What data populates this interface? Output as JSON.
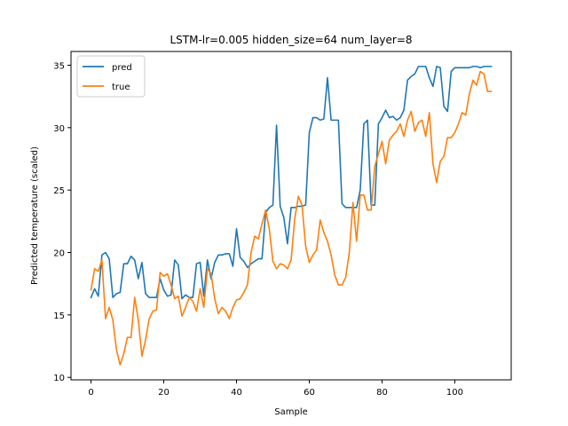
{
  "chart_data": {
    "type": "line",
    "title": "LSTM-lr=0.005 hidden_size=64 num_layer=8",
    "xlabel": "Sample",
    "ylabel": "Predicted temperature (scaled)",
    "xlim": [
      -5.5,
      115.5
    ],
    "ylim": [
      9.8,
      36.1
    ],
    "xticks": [
      0,
      20,
      40,
      60,
      80,
      100
    ],
    "yticks": [
      10,
      15,
      20,
      25,
      30,
      35
    ],
    "grid": false,
    "legend_position": "top-left",
    "series": [
      {
        "name": "pred",
        "color": "#1f77b4",
        "values": [
          16.4,
          17.1,
          16.5,
          19.8,
          20.0,
          19.5,
          16.4,
          16.7,
          16.8,
          19.1,
          19.1,
          19.7,
          19.4,
          17.9,
          19.2,
          16.7,
          16.4,
          16.4,
          16.4,
          17.9,
          17.0,
          16.5,
          16.6,
          19.4,
          19.0,
          16.3,
          16.6,
          16.4,
          16.4,
          19.1,
          19.2,
          16.5,
          19.4,
          17.9,
          19.2,
          19.8,
          19.8,
          19.9,
          19.9,
          18.9,
          21.9,
          19.6,
          19.3,
          18.8,
          19.1,
          19.3,
          19.5,
          19.5,
          23.2,
          23.6,
          23.8,
          30.2,
          23.7,
          22.8,
          20.7,
          23.6,
          23.6,
          23.7,
          23.7,
          23.8,
          29.6,
          30.8,
          30.8,
          30.6,
          30.7,
          34.0,
          30.6,
          30.6,
          30.6,
          23.9,
          23.6,
          23.6,
          23.6,
          23.6,
          25.0,
          30.3,
          30.6,
          23.8,
          23.8,
          30.3,
          30.8,
          31.4,
          30.8,
          30.9,
          30.6,
          30.8,
          31.4,
          33.8,
          34.1,
          34.3,
          34.9,
          34.9,
          34.9,
          34.0,
          33.3,
          34.9,
          34.8,
          31.7,
          31.3,
          34.5,
          34.8,
          34.8,
          34.8,
          34.8,
          34.8,
          34.9,
          34.9,
          34.8,
          34.9,
          34.9,
          34.9
        ]
      },
      {
        "name": "true",
        "color": "#ff7f0e",
        "values": [
          17.0,
          18.7,
          18.5,
          19.4,
          14.7,
          15.6,
          14.6,
          12.2,
          11.0,
          11.9,
          13.2,
          13.2,
          16.4,
          14.6,
          11.7,
          13.0,
          14.7,
          15.3,
          15.4,
          18.4,
          18.1,
          18.3,
          17.4,
          16.3,
          16.5,
          14.9,
          15.6,
          16.4,
          16.1,
          15.3,
          17.1,
          15.6,
          18.7,
          18.3,
          16.3,
          15.1,
          15.6,
          15.3,
          14.7,
          15.6,
          16.2,
          16.3,
          16.8,
          17.4,
          20.0,
          21.3,
          21.1,
          22.3,
          23.4,
          21.9,
          19.3,
          18.7,
          19.1,
          19.0,
          18.7,
          19.4,
          22.7,
          24.5,
          23.8,
          20.5,
          19.2,
          19.8,
          20.2,
          22.6,
          21.6,
          20.9,
          19.8,
          18.2,
          17.4,
          17.4,
          18.0,
          20.0,
          24.0,
          20.9,
          24.6,
          24.6,
          23.4,
          23.4,
          26.9,
          27.9,
          28.9,
          27.1,
          29.0,
          29.4,
          29.7,
          30.3,
          29.3,
          30.6,
          31.3,
          29.7,
          30.4,
          30.6,
          29.3,
          31.2,
          27.1,
          25.6,
          27.3,
          27.7,
          29.2,
          29.2,
          29.6,
          30.3,
          31.2,
          31.0,
          32.7,
          33.8,
          33.4,
          34.5,
          34.3,
          32.9,
          32.9
        ]
      }
    ]
  }
}
